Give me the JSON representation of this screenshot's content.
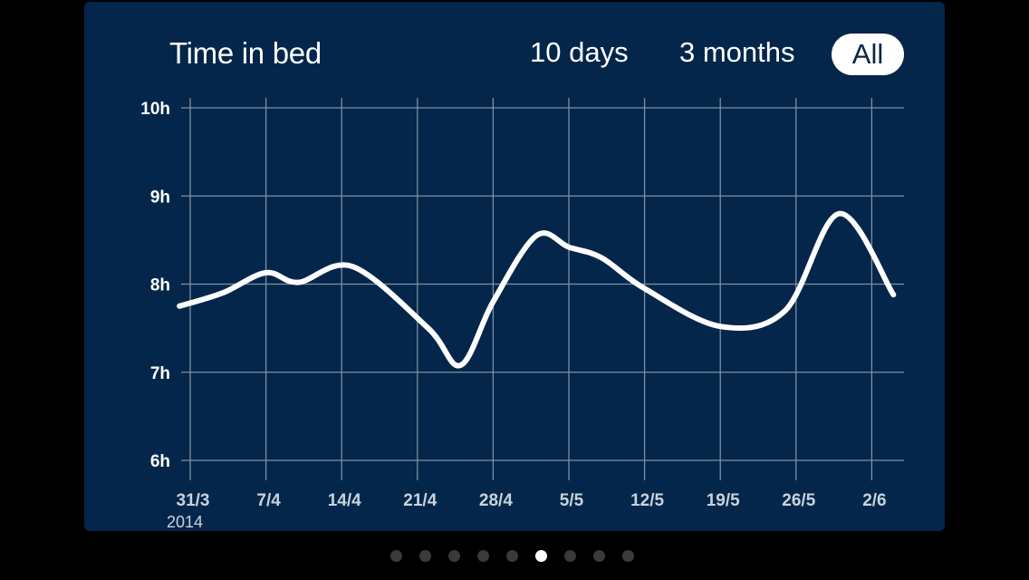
{
  "header": {
    "title": "Time in bed",
    "ranges": [
      "10 days",
      "3 months",
      "All"
    ],
    "selected_range": "All"
  },
  "colors": {
    "card_background": "#04264a",
    "line": "#ffffff",
    "grid": "#7f8fa3",
    "page_dot_active": "#ffffff",
    "page_dot_inactive": "#3a3a3a"
  },
  "pager": {
    "count": 9,
    "active_index": 5
  },
  "chart_data": {
    "type": "line",
    "title": "Time in bed",
    "year_label": "2014",
    "x_tick_labels": [
      "31/3",
      "7/4",
      "14/4",
      "21/4",
      "28/4",
      "5/5",
      "12/5",
      "19/5",
      "26/5",
      "2/6"
    ],
    "y_tick_labels": [
      "6h",
      "7h",
      "8h",
      "9h",
      "10h"
    ],
    "ylim": [
      6,
      10
    ],
    "grid": true,
    "smooth": true,
    "series": [
      {
        "x": [
          "2014-03-30",
          "2014-04-03",
          "2014-04-07",
          "2014-04-10",
          "2014-04-15",
          "2014-04-22",
          "2014-04-25",
          "2014-04-28",
          "2014-05-02",
          "2014-05-05",
          "2014-05-08",
          "2014-05-12",
          "2014-05-19",
          "2014-05-25",
          "2014-05-30",
          "2014-06-04"
        ],
        "values": [
          7.75,
          7.9,
          8.13,
          8.02,
          8.2,
          7.5,
          7.08,
          7.8,
          8.55,
          8.42,
          8.3,
          7.95,
          7.52,
          7.7,
          8.8,
          7.88
        ]
      }
    ]
  }
}
